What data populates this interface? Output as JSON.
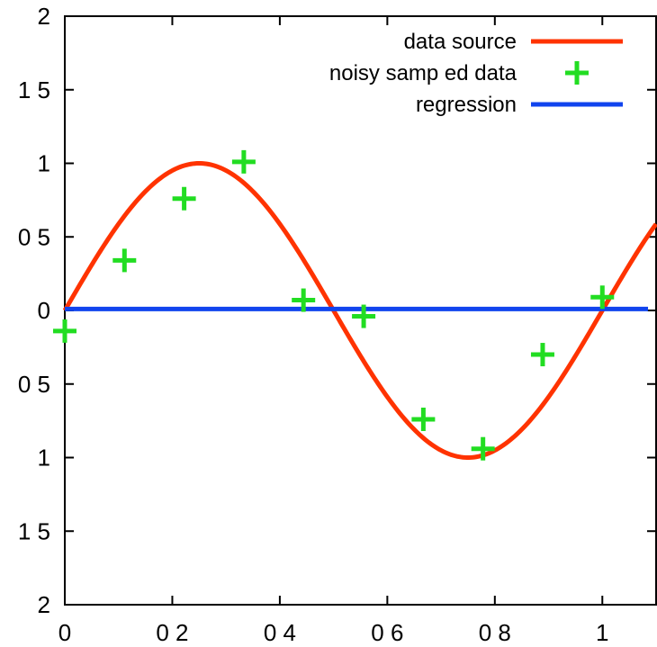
{
  "chart_data": {
    "type": "line",
    "title": "",
    "xlabel": "",
    "ylabel": "",
    "xlim": [
      0,
      1.1
    ],
    "ylim": [
      -2,
      2
    ],
    "x_ticks": [
      0,
      0.2,
      0.4,
      0.6,
      0.8,
      1
    ],
    "x_tick_labels": [
      "0",
      "0 2",
      "0 4",
      "0 6",
      "0 8",
      "1"
    ],
    "y_ticks": [
      2,
      1.5,
      1,
      0.5,
      0,
      -0.5,
      -1,
      -1.5,
      -2
    ],
    "y_tick_labels": [
      "2",
      "1 5",
      "1",
      "0 5",
      "0",
      "0 5",
      "1",
      "1 5",
      "2"
    ],
    "grid": false,
    "legend_position": "top-right",
    "series": [
      {
        "name": "data source",
        "kind": "line",
        "color": "#ff3300",
        "function": "sin(2*pi*x)",
        "x_range": [
          0,
          1.1
        ]
      },
      {
        "name": "noisy samp ed data",
        "kind": "scatter",
        "marker": "plus",
        "color": "#22dd22",
        "x": [
          0.0,
          0.111,
          0.222,
          0.333,
          0.444,
          0.556,
          0.667,
          0.778,
          0.889,
          1.0
        ],
        "y": [
          -0.14,
          0.34,
          0.76,
          1.01,
          0.07,
          -0.04,
          -0.74,
          -0.94,
          -0.3,
          0.09
        ]
      },
      {
        "name": "regression",
        "kind": "line",
        "color": "#1144ee",
        "x": [
          0,
          1.085
        ],
        "y": [
          0.01,
          0.01
        ]
      }
    ]
  }
}
